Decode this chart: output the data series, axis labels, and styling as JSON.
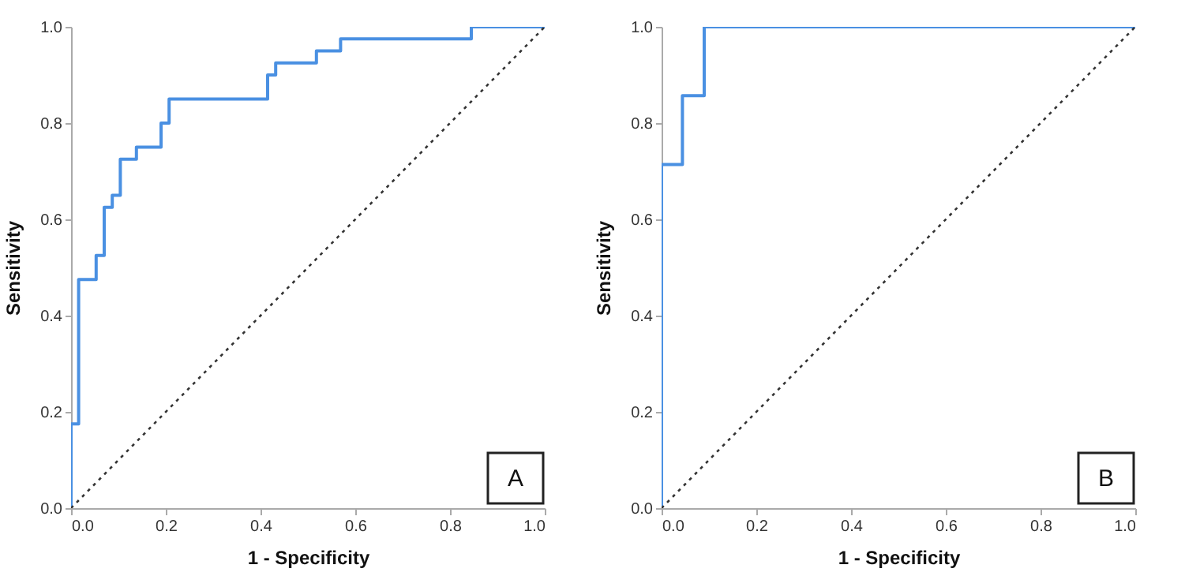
{
  "chart_data": [
    {
      "type": "step",
      "xlabel": "1 - Specificity",
      "ylabel": "Sensitivity",
      "annotations": [
        "A"
      ],
      "xlim": [
        0,
        1
      ],
      "ylim": [
        0,
        1
      ],
      "xticks": [
        {
          "value": 0,
          "label": "0.0"
        },
        {
          "value": 0.2,
          "label": "0.2"
        },
        {
          "value": 0.4,
          "label": "0.4"
        },
        {
          "value": 0.6,
          "label": "0.6"
        },
        {
          "value": 0.8,
          "label": "0.8"
        },
        {
          "value": 1,
          "label": "1.0"
        }
      ],
      "yticks": [
        {
          "value": 0,
          "label": "0.0"
        },
        {
          "value": 0.2,
          "label": "0.2"
        },
        {
          "value": 0.4,
          "label": "0.4"
        },
        {
          "value": 0.6,
          "label": "0.6"
        },
        {
          "value": 0.8,
          "label": "0.8"
        },
        {
          "value": 1,
          "label": "1.0"
        }
      ],
      "series": [
        {
          "line_style": "solid",
          "color": "#4a90e2",
          "x": [
            0,
            0,
            0.016,
            0.053,
            0.07,
            0.087,
            0.104,
            0.138,
            0.19,
            0.207,
            0.415,
            0.432,
            0.518,
            0.569,
            0.845,
            1
          ],
          "values": [
            0,
            0.175,
            0.475,
            0.525,
            0.625,
            0.65,
            0.725,
            0.75,
            0.8,
            0.85,
            0.9,
            0.925,
            0.95,
            0.975,
            1,
            1
          ]
        },
        {
          "type": "line",
          "color": "#333333",
          "line_style": "dotted",
          "x": [
            0,
            1
          ],
          "values": [
            0,
            1
          ]
        }
      ]
    },
    {
      "type": "step",
      "xlabel": "1 - Specificity",
      "ylabel": "Sensitivity",
      "annotations": [
        "B"
      ],
      "xlim": [
        0,
        1
      ],
      "ylim": [
        0,
        1
      ],
      "xticks": [
        {
          "value": 0,
          "label": "0.0"
        },
        {
          "value": 0.2,
          "label": "0.2"
        },
        {
          "value": 0.4,
          "label": "0.4"
        },
        {
          "value": 0.6,
          "label": "0.6"
        },
        {
          "value": 0.8,
          "label": "0.8"
        },
        {
          "value": 1,
          "label": "1.0"
        }
      ],
      "yticks": [
        {
          "value": 0,
          "label": "0.0"
        },
        {
          "value": 0.2,
          "label": "0.2"
        },
        {
          "value": 0.4,
          "label": "0.4"
        },
        {
          "value": 0.6,
          "label": "0.6"
        },
        {
          "value": 0.8,
          "label": "0.8"
        },
        {
          "value": 1,
          "label": "1.0"
        }
      ],
      "series": [
        {
          "line_style": "solid",
          "color": "#4a90e2",
          "x": [
            0,
            0,
            0.044,
            0.09,
            1
          ],
          "values": [
            0,
            0.714,
            0.857,
            1,
            1
          ]
        },
        {
          "type": "line",
          "color": "#333333",
          "line_style": "dotted",
          "x": [
            0,
            1
          ],
          "values": [
            0,
            1
          ]
        }
      ]
    }
  ]
}
